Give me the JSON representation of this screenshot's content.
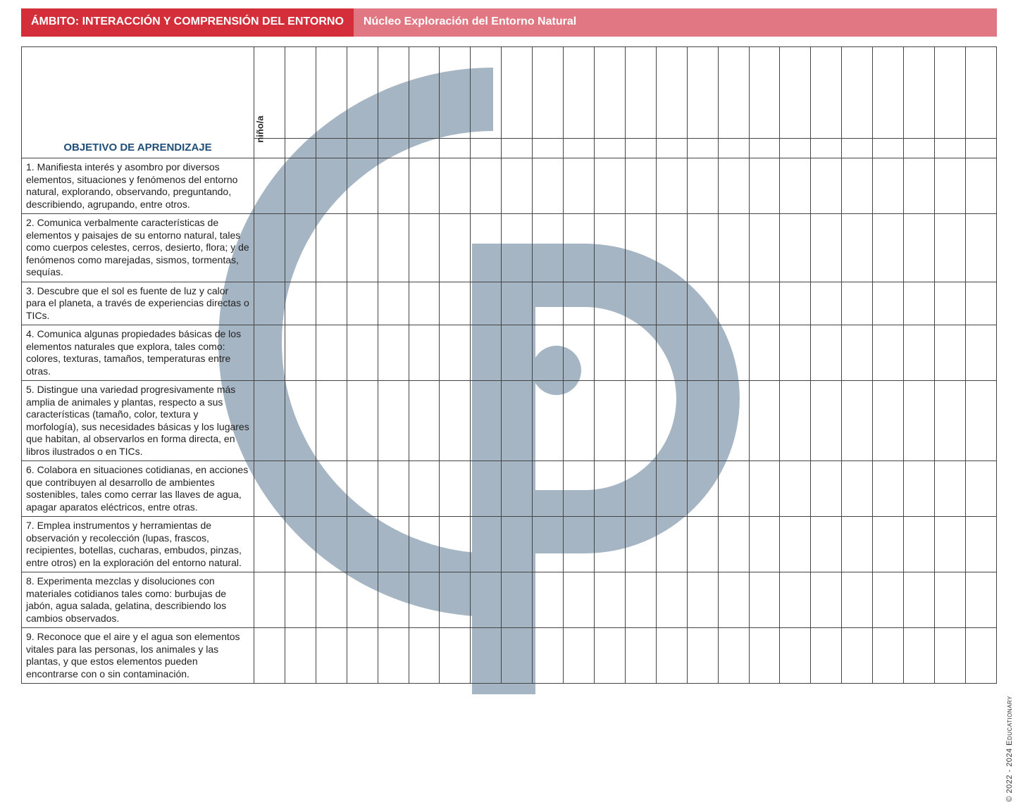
{
  "header": {
    "left": "ÁMBITO: INTERACCIÓN Y COMPRENSIÓN DEL ENTORNO",
    "right": "Núcleo Exploración del Entorno Natural",
    "left_bg": "#d32e3a",
    "right_bg": "#e07783",
    "text_color": "#ffffff"
  },
  "column_rot_label": "niño/a",
  "section_title": "OBJETIVO DE APRENDIZAJE",
  "section_title_color": "#1f4e79",
  "grid_columns": 24,
  "border_color": "#444444",
  "background_color": "#ffffff",
  "text_color": "#222222",
  "objective_fontsize": 14,
  "watermark_color": "#5d7a93",
  "watermark_opacity": 0.55,
  "objectives": [
    "1. Manifiesta interés y asombro por diversos elementos, situaciones y fenómenos del entorno natural, explorando, observando, preguntando, describiendo, agrupando, entre otros.",
    "2. Comunica verbalmente características de elementos y paisajes de su entorno natural, tales como cuerpos celestes, cerros, desierto, flora; y de fenómenos como marejadas, sismos, tormentas, sequías.",
    "3. Descubre que el sol es fuente de luz y calor para el planeta, a través de experiencias directas o TICs.",
    "4. Comunica algunas propiedades básicas de los elementos naturales que explora, tales como: colores, texturas, tamaños, temperaturas entre otras.",
    "5. Distingue una variedad progresivamente más amplia de animales y plantas, respecto a sus características (tamaño, color, textura y morfología), sus necesidades básicas y los lugares que habitan, al observarlos en forma directa, en libros ilustrados o en TICs.",
    "6. Colabora en situaciones cotidianas, en acciones que contribuyen al desarrollo de ambientes sostenibles, tales como cerrar las llaves de agua, apagar aparatos eléctricos, entre otras.",
    "7. Emplea instrumentos y herramientas de observación y recolección (lupas, frascos, recipientes, botellas, cucharas, embudos, pinzas, entre otros) en la exploración del entorno natural.",
    "8. Experimenta mezclas y disoluciones con materiales cotidianos tales como: burbujas de jabón, agua salada, gelatina, describiendo los cambios observados.",
    "9. Reconoce que el aire y el agua son elementos vitales para las personas, los animales y las plantas, y que estos elementos pueden encontrarse con o sin contaminación."
  ],
  "copyright": "© 2022 - 2024 Educationary"
}
